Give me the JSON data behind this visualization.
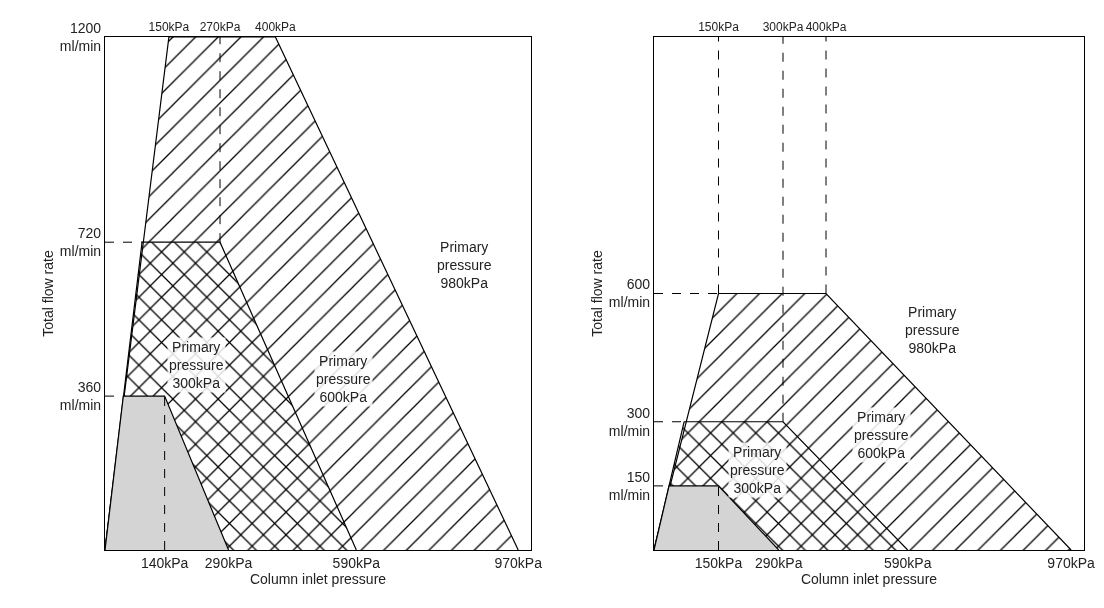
{
  "chart_data": [
    {
      "type": "area",
      "xlabel": "Column inlet pressure",
      "ylabel": "Total flow rate",
      "xlim": [
        0,
        1000
      ],
      "ylim": [
        0,
        1200
      ],
      "xticks": [
        {
          "value": 140,
          "label": "140kPa"
        },
        {
          "value": 290,
          "label": "290kPa"
        },
        {
          "value": 590,
          "label": "590kPa"
        },
        {
          "value": 970,
          "label": "970kPa"
        }
      ],
      "x2lim": [
        0,
        1000
      ],
      "x2ticks": [
        {
          "value": 150,
          "label": "150kPa"
        },
        {
          "value": 270,
          "label": "270kPa"
        },
        {
          "value": 400,
          "label": "400kPa"
        }
      ],
      "yticks": [
        {
          "value": 360,
          "label": "360\nml/min"
        },
        {
          "value": 720,
          "label": "720\nml/min"
        },
        {
          "value": 1200,
          "label": "1200\nml/min"
        }
      ],
      "grid": false,
      "series": [
        {
          "color": "#000000",
          "x": [
            0,
            150,
            400,
            970
          ],
          "values": [
            0,
            1200,
            1200,
            0
          ]
        },
        {
          "color": "#000000",
          "x": [
            0,
            87,
            270,
            590
          ],
          "values": [
            0,
            720,
            720,
            0
          ]
        },
        {
          "color": "#d4d4d4",
          "x": [
            0,
            43,
            140,
            290
          ],
          "values": [
            0,
            360,
            360,
            0
          ]
        },
        {
          "type": "line",
          "color": "#000000",
          "line_style": "dashed",
          "x": [
            140,
            140
          ],
          "values": [
            0,
            360
          ]
        },
        {
          "type": "line",
          "color": "#000000",
          "line_style": "dashed",
          "x": [
            270,
            270
          ],
          "values": [
            720,
            1200
          ]
        },
        {
          "type": "line",
          "color": "#000000",
          "line_style": "dashed",
          "x": [
            0,
            87
          ],
          "values": [
            720,
            720
          ]
        },
        {
          "type": "line",
          "color": "#000000",
          "line_style": "dashed",
          "x": [
            0,
            43
          ],
          "values": [
            360,
            360
          ]
        }
      ],
      "annotations": [
        "Primary\npressure\n980kPa",
        "Primary\npressure\n600kPa",
        "Primary\npressure\n300kPa"
      ]
    },
    {
      "type": "area",
      "xlabel": "Column inlet pressure",
      "ylabel": "Total flow rate",
      "xlim": [
        0,
        1000
      ],
      "ylim": [
        0,
        1200
      ],
      "xticks": [
        {
          "value": 150,
          "label": "150kPa"
        },
        {
          "value": 290,
          "label": "290kPa"
        },
        {
          "value": 590,
          "label": "590kPa"
        },
        {
          "value": 970,
          "label": "970kPa"
        }
      ],
      "x2lim": [
        0,
        1000
      ],
      "x2ticks": [
        {
          "value": 150,
          "label": "150kPa"
        },
        {
          "value": 300,
          "label": "300kPa"
        },
        {
          "value": 400,
          "label": "400kPa"
        }
      ],
      "yticks": [
        {
          "value": 150,
          "label": "150\nml/min"
        },
        {
          "value": 300,
          "label": "300\nml/min"
        },
        {
          "value": 600,
          "label": "600\nml/min"
        }
      ],
      "grid": false,
      "series": [
        {
          "color": "#000000",
          "x": [
            0,
            150,
            400,
            970
          ],
          "values": [
            0,
            600,
            600,
            0
          ]
        },
        {
          "color": "#000000",
          "x": [
            0,
            70,
            300,
            590
          ],
          "values": [
            0,
            300,
            300,
            0
          ]
        },
        {
          "color": "#d4d4d4",
          "x": [
            0,
            35,
            150,
            290
          ],
          "values": [
            0,
            150,
            150,
            0
          ]
        },
        {
          "type": "line",
          "color": "#000000",
          "line_style": "dashed",
          "x": [
            150,
            150
          ],
          "values": [
            0,
            150
          ]
        },
        {
          "type": "line",
          "color": "#000000",
          "line_style": "dashed",
          "x": [
            150,
            150
          ],
          "values": [
            600,
            1200
          ]
        },
        {
          "type": "line",
          "color": "#000000",
          "line_style": "dashed",
          "x": [
            300,
            300
          ],
          "values": [
            300,
            1200
          ]
        },
        {
          "type": "line",
          "color": "#000000",
          "line_style": "dashed",
          "x": [
            400,
            400
          ],
          "values": [
            600,
            1200
          ]
        },
        {
          "type": "line",
          "color": "#000000",
          "line_style": "dashed",
          "x": [
            0,
            150
          ],
          "values": [
            600,
            600
          ]
        },
        {
          "type": "line",
          "color": "#000000",
          "line_style": "dashed",
          "x": [
            0,
            70
          ],
          "values": [
            300,
            300
          ]
        },
        {
          "type": "line",
          "color": "#000000",
          "line_style": "dashed",
          "x": [
            0,
            35
          ],
          "values": [
            150,
            150
          ]
        }
      ],
      "annotations": [
        "Primary\npressure\n980kPa",
        "Primary\npressure\n600kPa",
        "Primary\npressure\n300kPa"
      ]
    }
  ]
}
